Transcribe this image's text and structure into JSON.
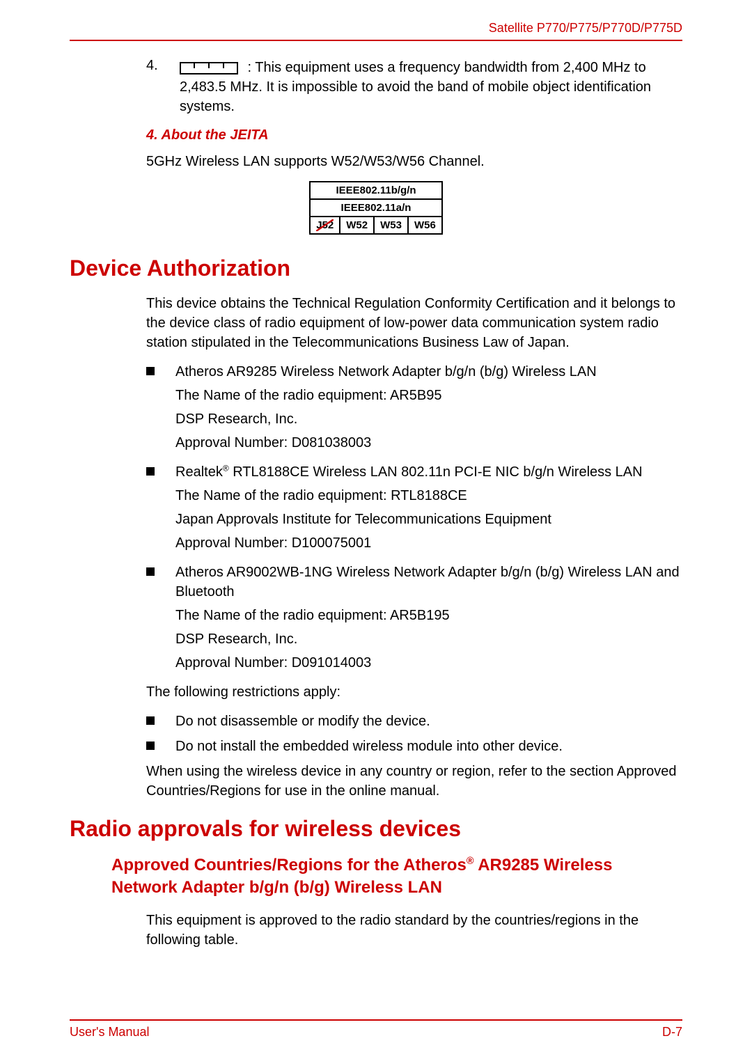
{
  "header": {
    "product": "Satellite P770/P775/P770D/P775D"
  },
  "item4": {
    "num": "4.",
    "text_after_icon": " : This equipment uses a frequency bandwidth from 2,400 MHz to 2,483.5 MHz. It is impossible to avoid the band of mobile object identification systems."
  },
  "jeita": {
    "heading": "4. About the JEITA",
    "intro": "5GHz Wireless LAN supports W52/W53/W56 Channel.",
    "row1": "IEEE802.11b/g/n",
    "row2": "IEEE802.11a/n",
    "cells": {
      "j52": "J52",
      "w52": "W52",
      "w53": "W53",
      "w56": "W56"
    }
  },
  "device_auth": {
    "title": "Device Authorization",
    "intro": "This device obtains the Technical Regulation Conformity Certification and it belongs to the device class of radio equipment of low-power data communication system radio station stipulated in the Telecommunications Business Law of Japan.",
    "items": [
      {
        "lines": [
          "Atheros AR9285 Wireless Network Adapter b/g/n (b/g) Wireless LAN",
          "The Name of the radio equipment: AR5B95",
          "DSP Research, Inc.",
          "Approval Number: D081038003"
        ]
      },
      {
        "lines_html": [
          "Realtek<sup>®</sup> RTL8188CE Wireless LAN 802.11n PCI-E NIC b/g/n Wireless LAN",
          "The Name of the radio equipment: RTL8188CE",
          "Japan Approvals Institute for Telecommunications Equipment",
          "Approval Number: D100075001"
        ]
      },
      {
        "lines": [
          "Atheros AR9002WB-1NG Wireless Network Adapter b/g/n (b/g) Wireless LAN and Bluetooth",
          "The Name of the radio equipment: AR5B195",
          "DSP Research, Inc.",
          "Approval Number: D091014003"
        ]
      }
    ],
    "restrictions_intro": "The following restrictions apply:",
    "restrictions": [
      "Do not disassemble or modify the device.",
      "Do not install the embedded wireless module into other device."
    ],
    "closing": "When using the wireless device in any country or region, refer to the section Approved Countries/Regions for use in the online manual."
  },
  "radio": {
    "title": "Radio approvals for wireless devices",
    "sub_html": "Approved Countries/Regions for the Atheros<sup>®</sup> AR9285 Wireless Network Adapter b/g/n (b/g) Wireless LAN",
    "text": "This equipment is approved to the radio standard by the countries/regions in the following table."
  },
  "footer": {
    "left": "User's Manual",
    "right": "D-7"
  },
  "colors": {
    "accent": "#cc0000",
    "text": "#000000",
    "bg": "#ffffff"
  }
}
